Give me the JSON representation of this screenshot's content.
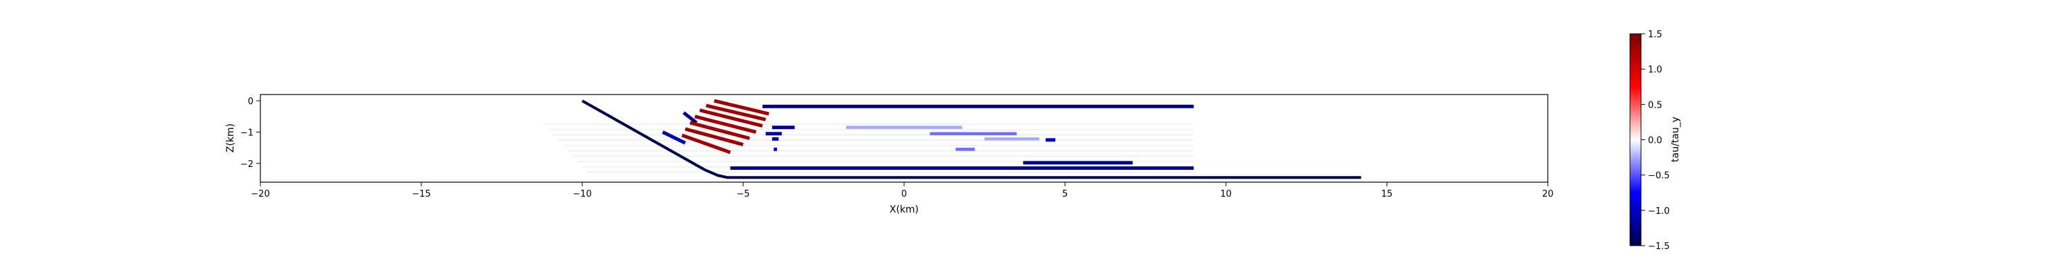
{
  "chart_data": {
    "type": "scatter",
    "title": "",
    "xlabel": "X(km)",
    "ylabel": "Z(km)",
    "xlim": [
      -20,
      20
    ],
    "ylim": [
      -2.6,
      0.2
    ],
    "xticks": [
      "−20",
      "−15",
      "−10",
      "−5",
      "0",
      "5",
      "10",
      "15",
      "20"
    ],
    "xtick_values": [
      -20,
      -15,
      -10,
      -5,
      0,
      5,
      10,
      15,
      20
    ],
    "yticks": [
      "0",
      "−1",
      "−2"
    ],
    "ytick_values": [
      0,
      -1,
      -2
    ],
    "grid": false,
    "colormap": "seismic",
    "colorbar": {
      "label": "tau/tau_y",
      "range": [
        -1.5,
        1.5
      ],
      "ticks": [
        "1.5",
        "1.0",
        "0.5",
        "0.0",
        "−0.5",
        "−1.0",
        "−1.5"
      ],
      "tick_values": [
        1.5,
        1.0,
        0.5,
        0.0,
        -0.5,
        -1.0,
        -1.5
      ],
      "colors": [
        "#00004c",
        "#0000ff",
        "#ffffff",
        "#ff0000",
        "#7f0000"
      ]
    },
    "faults": [
      {
        "x": [
          -10.0,
          -6.2,
          -5.8,
          -5.5,
          14.2
        ],
        "z": [
          0.0,
          -2.2,
          -2.38,
          -2.45,
          -2.45
        ],
        "value": -1.5
      },
      {
        "x": [
          -4.4,
          9.0
        ],
        "z": [
          -0.18,
          -0.18
        ],
        "value": -1.3
      },
      {
        "x": [
          -5.4,
          9.0
        ],
        "z": [
          -2.15,
          -2.15
        ],
        "value": -1.3
      },
      {
        "x": [
          3.7,
          7.1
        ],
        "z": [
          -1.98,
          -1.98
        ],
        "value": -1.2
      },
      {
        "x": [
          -4.1,
          -3.4
        ],
        "z": [
          -0.85,
          -0.85
        ],
        "value": -1.2
      },
      {
        "x": [
          -4.3,
          -3.8
        ],
        "z": [
          -1.05,
          -1.05
        ],
        "value": -1.1
      },
      {
        "x": [
          -4.1,
          -3.9
        ],
        "z": [
          -1.22,
          -1.22
        ],
        "value": -1.1
      },
      {
        "x": [
          -4.05,
          -3.95
        ],
        "z": [
          -1.55,
          -1.55
        ],
        "value": -0.9
      },
      {
        "x": [
          -1.8,
          1.8
        ],
        "z": [
          -0.85,
          -0.85
        ],
        "value": -0.3
      },
      {
        "x": [
          0.8,
          3.5
        ],
        "z": [
          -1.05,
          -1.05
        ],
        "value": -0.5
      },
      {
        "x": [
          2.5,
          4.2
        ],
        "z": [
          -1.22,
          -1.22
        ],
        "value": -0.3
      },
      {
        "x": [
          1.6,
          2.2
        ],
        "z": [
          -1.55,
          -1.55
        ],
        "value": -0.5
      },
      {
        "x": [
          4.4,
          4.7
        ],
        "z": [
          -1.25,
          -1.25
        ],
        "value": -0.9
      },
      {
        "x": [
          -6.85,
          -6.45
        ],
        "z": [
          -0.38,
          -0.7
        ],
        "value": -1.2
      },
      {
        "x": [
          -7.5,
          -6.8
        ],
        "z": [
          -1.0,
          -1.35
        ],
        "value": -1.1
      },
      {
        "x": [
          -5.9,
          -4.2
        ],
        "z": [
          0.0,
          -0.42
        ],
        "value": 1.3
      },
      {
        "x": [
          -6.15,
          -4.3
        ],
        "z": [
          -0.15,
          -0.6
        ],
        "value": 1.3
      },
      {
        "x": [
          -6.35,
          -4.4
        ],
        "z": [
          -0.3,
          -0.8
        ],
        "value": 1.3
      },
      {
        "x": [
          -6.5,
          -4.6
        ],
        "z": [
          -0.5,
          -1.0
        ],
        "value": 1.3
      },
      {
        "x": [
          -6.65,
          -4.8
        ],
        "z": [
          -0.7,
          -1.2
        ],
        "value": 1.3
      },
      {
        "x": [
          -6.8,
          -5.0
        ],
        "z": [
          -0.9,
          -1.4
        ],
        "value": 1.3
      },
      {
        "x": [
          -6.9,
          -5.4
        ],
        "z": [
          -1.1,
          -1.65
        ],
        "value": 1.3
      }
    ]
  }
}
